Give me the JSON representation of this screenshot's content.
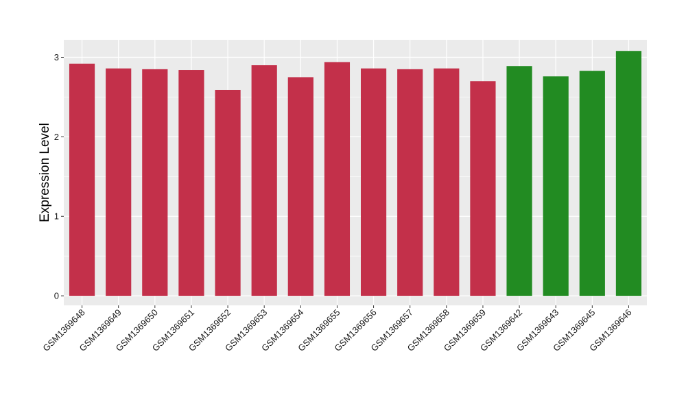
{
  "chart_data": {
    "type": "bar",
    "title": "",
    "xlabel": "",
    "ylabel": "Expression Level",
    "ylim": [
      -0.12,
      3.22
    ],
    "yticks": [
      0,
      1,
      2,
      3
    ],
    "grid": true,
    "legend": "none",
    "categories": [
      "GSM1369648",
      "GSM1369649",
      "GSM1369650",
      "GSM1369651",
      "GSM1369652",
      "GSM1369653",
      "GSM1369654",
      "GSM1369655",
      "GSM1369656",
      "GSM1369657",
      "GSM1369658",
      "GSM1369659",
      "GSM1369642",
      "GSM1369643",
      "GSM1369645",
      "GSM1369646"
    ],
    "values": [
      2.92,
      2.86,
      2.85,
      2.84,
      2.59,
      2.9,
      2.75,
      2.94,
      2.86,
      2.85,
      2.86,
      2.7,
      2.89,
      2.76,
      2.83,
      3.08
    ],
    "groups": [
      "red",
      "red",
      "red",
      "red",
      "red",
      "red",
      "red",
      "red",
      "red",
      "red",
      "red",
      "red",
      "green",
      "green",
      "green",
      "green"
    ],
    "colors": {
      "red": "#C3304A",
      "green": "#228B22"
    },
    "panel_background": "#EBEBEB",
    "gridline_color": "#FFFFFF"
  }
}
